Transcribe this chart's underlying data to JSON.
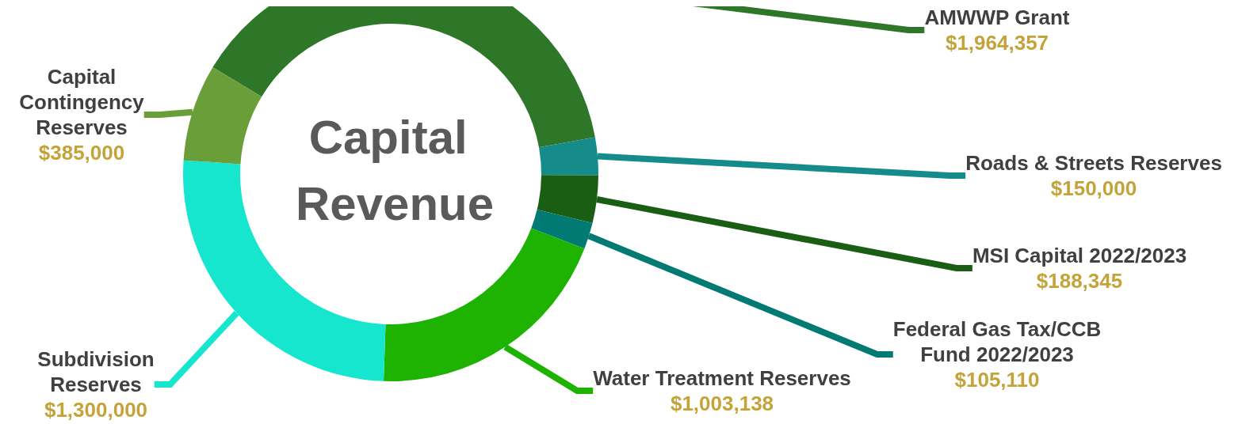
{
  "chart_data": {
    "type": "donut",
    "title": "Capital Revenue",
    "categories": [
      "AMWWP Grant",
      "Roads & Streets Reserves",
      "MSI Capital 2022/2023",
      "Federal Gas Tax/CCB Fund 2022/2023",
      "Water Treatment Reserves",
      "Subdivision Reserves",
      "Capital Contingency Reserves"
    ],
    "values": [
      1964357,
      150000,
      188345,
      105110,
      1003138,
      1300000,
      385000
    ],
    "value_labels": [
      "$1,964,357",
      "$150,000",
      "$188,345",
      "$105,110",
      "$1,003,138",
      "$1,300,000",
      "$385,000"
    ],
    "colors": [
      "#2e7628",
      "#158c8a",
      "#1a5e14",
      "#007a72",
      "#1db300",
      "#17e6cf",
      "#6a9e38"
    ],
    "legend": false
  }
}
